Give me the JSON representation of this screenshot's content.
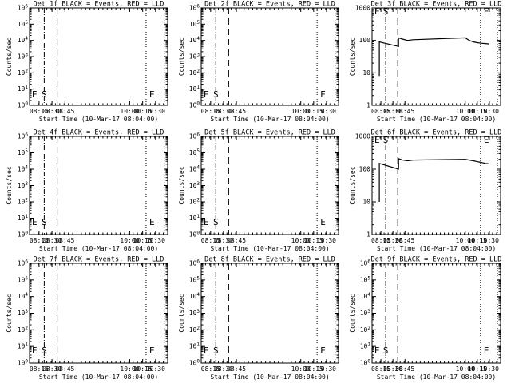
{
  "chart_data": [
    {
      "id": "det1f",
      "type": "line",
      "title": "Det 1f BLACK = Events, RED = LLD",
      "xlabel": "Start Time (10-Mar-17 08:04:00)",
      "ylabel": "Counts/sec",
      "xlim": [
        "08:04",
        "10:44"
      ],
      "x_ticks": [
        "08:15",
        "08:30",
        "08:45",
        "10:00",
        "10:15",
        "10:30"
      ],
      "ylim": [
        1,
        1000000
      ],
      "yscale": "log",
      "y_tick_labels": [
        "10^0",
        "10^1",
        "10^2",
        "10^3",
        "10^4",
        "10^5",
        "10^6"
      ],
      "markers": [
        {
          "label": "E",
          "x": "08:04"
        },
        {
          "label": "S",
          "x": "08:21"
        },
        {
          "label": "E",
          "x": "10:20"
        }
      ],
      "vlines": [
        {
          "x": "08:21",
          "style": "dashdot"
        },
        {
          "x": "08:36",
          "style": "dashed"
        },
        {
          "x": "10:19",
          "style": "dotted"
        },
        {
          "x": "10:40",
          "style": "dotted"
        }
      ],
      "series": []
    },
    {
      "id": "det2f",
      "type": "line",
      "title": "Det 2f BLACK = Events, RED = LLD",
      "xlabel": "Start Time (10-Mar-17 08:04:00)",
      "ylabel": "Counts/sec",
      "xlim": [
        "08:04",
        "10:44"
      ],
      "x_ticks": [
        "08:15",
        "08:30",
        "08:45",
        "10:00",
        "10:15",
        "10:30"
      ],
      "ylim": [
        1,
        1000000
      ],
      "yscale": "log",
      "y_tick_labels": [
        "10^0",
        "10^1",
        "10^2",
        "10^3",
        "10^4",
        "10^5",
        "10^6"
      ],
      "markers": [
        {
          "label": "E",
          "x": "08:04"
        },
        {
          "label": "S",
          "x": "08:21"
        },
        {
          "label": "E",
          "x": "10:20"
        }
      ],
      "vlines": [
        {
          "x": "08:21",
          "style": "dashdot"
        },
        {
          "x": "08:36",
          "style": "dashed"
        },
        {
          "x": "10:19",
          "style": "dotted"
        },
        {
          "x": "10:40",
          "style": "dotted"
        }
      ],
      "series": []
    },
    {
      "id": "det3f",
      "type": "line",
      "title": "Det 3f BLACK = Events, RED = LLD",
      "xlabel": "Start Time (10-Mar-17 08:04:00)",
      "ylabel": "Counts/sec",
      "xlim": [
        "08:04",
        "10:44"
      ],
      "x_ticks": [
        "08:15",
        "08:30",
        "08:45",
        "10:00",
        "10:15",
        "10:30"
      ],
      "ylim": [
        1,
        1000
      ],
      "yscale": "log",
      "y_tick_labels": [
        "1",
        "10",
        "100",
        "1000"
      ],
      "markers": [
        {
          "label": "E",
          "x": "08:04"
        },
        {
          "label": "S",
          "x": "08:21"
        },
        {
          "label": "E",
          "x": "10:20"
        }
      ],
      "vlines": [
        {
          "x": "08:21",
          "style": "dashdot"
        },
        {
          "x": "08:36",
          "style": "dashed"
        },
        {
          "x": "10:19",
          "style": "dotted"
        },
        {
          "x": "10:40",
          "style": "dotted"
        }
      ],
      "series": [
        {
          "color": "#000000",
          "x": [
            "08:13",
            "08:13",
            "08:37",
            "08:37",
            "08:42",
            "08:48",
            "08:55",
            "10:00",
            "10:05",
            "10:10",
            "10:15",
            "10:20",
            "10:25",
            "10:30"
          ],
          "y": [
            8,
            90,
            65,
            120,
            110,
            100,
            105,
            120,
            100,
            90,
            85,
            82,
            80,
            78
          ]
        }
      ]
    },
    {
      "id": "det4f",
      "type": "line",
      "title": "Det 4f BLACK = Events, RED = LLD",
      "xlabel": "Start Time (10-Mar-17 08:04:00)",
      "ylabel": "Counts/sec",
      "xlim": [
        "08:04",
        "10:44"
      ],
      "x_ticks": [
        "08:15",
        "08:30",
        "08:45",
        "10:00",
        "10:15",
        "10:30"
      ],
      "ylim": [
        1,
        1000000
      ],
      "yscale": "log",
      "y_tick_labels": [
        "10^0",
        "10^1",
        "10^2",
        "10^3",
        "10^4",
        "10^5",
        "10^6"
      ],
      "markers": [
        {
          "label": "E",
          "x": "08:04"
        },
        {
          "label": "S",
          "x": "08:21"
        },
        {
          "label": "E",
          "x": "10:20"
        }
      ],
      "vlines": [
        {
          "x": "08:21",
          "style": "dashdot"
        },
        {
          "x": "08:36",
          "style": "dashed"
        },
        {
          "x": "10:19",
          "style": "dotted"
        },
        {
          "x": "10:40",
          "style": "dotted"
        }
      ],
      "series": []
    },
    {
      "id": "det5f",
      "type": "line",
      "title": "Det 5f BLACK = Events, RED = LLD",
      "xlabel": "Start Time (10-Mar-17 08:04:00)",
      "ylabel": "Counts/sec",
      "xlim": [
        "08:04",
        "10:44"
      ],
      "x_ticks": [
        "08:15",
        "08:30",
        "08:45",
        "10:00",
        "10:15",
        "10:30"
      ],
      "ylim": [
        1,
        1000000
      ],
      "yscale": "log",
      "y_tick_labels": [
        "10^0",
        "10^1",
        "10^2",
        "10^3",
        "10^4",
        "10^5",
        "10^6"
      ],
      "markers": [
        {
          "label": "E",
          "x": "08:04"
        },
        {
          "label": "S",
          "x": "08:21"
        },
        {
          "label": "E",
          "x": "10:20"
        }
      ],
      "vlines": [
        {
          "x": "08:21",
          "style": "dashdot"
        },
        {
          "x": "08:36",
          "style": "dashed"
        },
        {
          "x": "10:19",
          "style": "dotted"
        },
        {
          "x": "10:40",
          "style": "dotted"
        }
      ],
      "series": []
    },
    {
      "id": "det6f",
      "type": "line",
      "title": "Det 6f BLACK = Events, RED = LLD",
      "xlabel": "Start Time (10-Mar-17 08:04:00)",
      "ylabel": "Counts/sec",
      "xlim": [
        "08:04",
        "10:44"
      ],
      "x_ticks": [
        "08:15",
        "08:30",
        "08:45",
        "10:00",
        "10:15",
        "10:30"
      ],
      "ylim": [
        1,
        1000
      ],
      "yscale": "log",
      "y_tick_labels": [
        "1",
        "10",
        "100",
        "1000"
      ],
      "markers": [
        {
          "label": "E",
          "x": "08:04"
        },
        {
          "label": "S",
          "x": "08:21"
        },
        {
          "label": "E",
          "x": "10:20"
        }
      ],
      "vlines": [
        {
          "x": "08:21",
          "style": "dashdot"
        },
        {
          "x": "08:36",
          "style": "dashed"
        },
        {
          "x": "10:19",
          "style": "dotted"
        },
        {
          "x": "10:40",
          "style": "dotted"
        }
      ],
      "series": [
        {
          "color": "#000000",
          "x": [
            "08:13",
            "08:13",
            "08:37",
            "08:37",
            "08:42",
            "08:48",
            "08:55",
            "10:00",
            "10:05",
            "10:10",
            "10:15",
            "10:20",
            "10:25",
            "10:30"
          ],
          "y": [
            10,
            150,
            100,
            210,
            190,
            180,
            190,
            200,
            190,
            180,
            170,
            160,
            150,
            145
          ]
        }
      ]
    },
    {
      "id": "det7f",
      "type": "line",
      "title": "Det 7f BLACK = Events, RED = LLD",
      "xlabel": "Start Time (10-Mar-17 08:04:00)",
      "ylabel": "Counts/sec",
      "xlim": [
        "08:04",
        "10:44"
      ],
      "x_ticks": [
        "08:15",
        "08:30",
        "08:45",
        "10:00",
        "10:15",
        "10:30"
      ],
      "ylim": [
        1,
        1000000
      ],
      "yscale": "log",
      "y_tick_labels": [
        "10^0",
        "10^1",
        "10^2",
        "10^3",
        "10^4",
        "10^5",
        "10^6"
      ],
      "markers": [
        {
          "label": "E",
          "x": "08:04"
        },
        {
          "label": "S",
          "x": "08:21"
        },
        {
          "label": "E",
          "x": "10:20"
        }
      ],
      "vlines": [
        {
          "x": "08:21",
          "style": "dashdot"
        },
        {
          "x": "08:36",
          "style": "dashed"
        },
        {
          "x": "10:19",
          "style": "dotted"
        },
        {
          "x": "10:40",
          "style": "dotted"
        }
      ],
      "series": []
    },
    {
      "id": "det8f",
      "type": "line",
      "title": "Det 8f BLACK = Events, RED = LLD",
      "xlabel": "Start Time (10-Mar-17 08:04:00)",
      "ylabel": "Counts/sec",
      "xlim": [
        "08:04",
        "10:44"
      ],
      "x_ticks": [
        "08:15",
        "08:30",
        "08:45",
        "10:00",
        "10:15",
        "10:30"
      ],
      "ylim": [
        1,
        1000000
      ],
      "yscale": "log",
      "y_tick_labels": [
        "10^0",
        "10^1",
        "10^2",
        "10^3",
        "10^4",
        "10^5",
        "10^6"
      ],
      "markers": [
        {
          "label": "E",
          "x": "08:04"
        },
        {
          "label": "S",
          "x": "08:21"
        },
        {
          "label": "E",
          "x": "10:20"
        }
      ],
      "vlines": [
        {
          "x": "08:21",
          "style": "dashdot"
        },
        {
          "x": "08:36",
          "style": "dashed"
        },
        {
          "x": "10:19",
          "style": "dotted"
        },
        {
          "x": "10:40",
          "style": "dotted"
        }
      ],
      "series": []
    },
    {
      "id": "det9f",
      "type": "line",
      "title": "Det 9f BLACK = Events, RED = LLD",
      "xlabel": "Start Time (10-Mar-17 08:04:00)",
      "ylabel": "Counts/sec",
      "xlim": [
        "08:04",
        "10:44"
      ],
      "x_ticks": [
        "08:15",
        "08:30",
        "08:45",
        "10:00",
        "10:15",
        "10:30"
      ],
      "ylim": [
        1,
        1000000
      ],
      "yscale": "log",
      "y_tick_labels": [
        "10^0",
        "10^1",
        "10^2",
        "10^3",
        "10^4",
        "10^5",
        "10^6"
      ],
      "markers": [
        {
          "label": "E",
          "x": "08:04"
        },
        {
          "label": "S",
          "x": "08:21"
        },
        {
          "label": "E",
          "x": "10:20"
        }
      ],
      "vlines": [
        {
          "x": "08:21",
          "style": "dashdot"
        },
        {
          "x": "08:36",
          "style": "dashed"
        },
        {
          "x": "10:19",
          "style": "dotted"
        },
        {
          "x": "10:40",
          "style": "dotted"
        }
      ],
      "series": []
    }
  ]
}
